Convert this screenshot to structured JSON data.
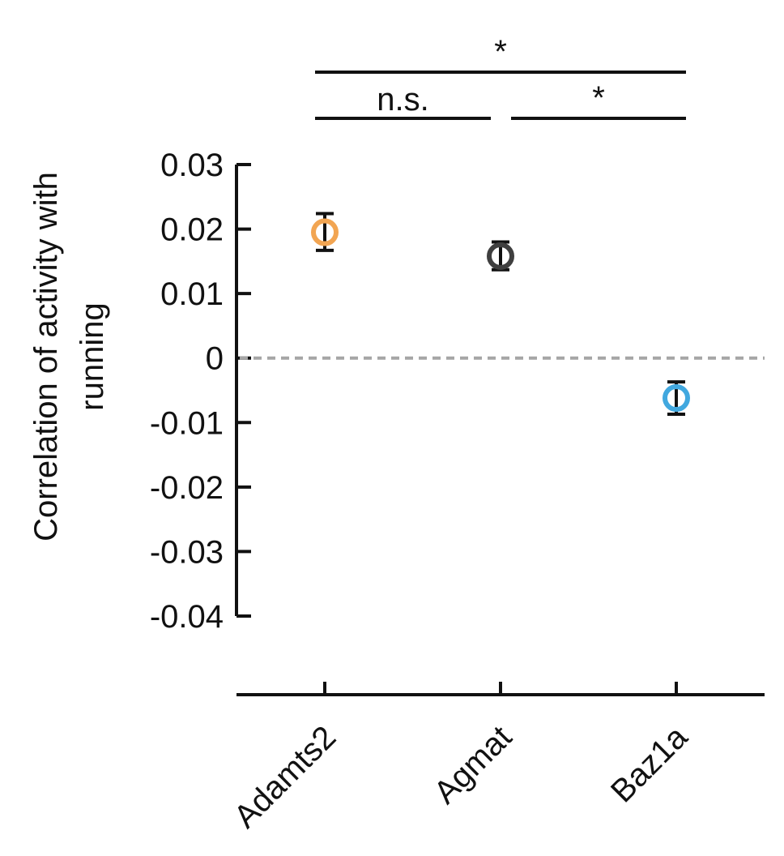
{
  "chart_data": {
    "type": "scatter",
    "ylabel_lines": [
      "Correlation of activity with",
      "running"
    ],
    "categories": [
      "Adamts2",
      "Agmat",
      "Baz1a"
    ],
    "points": [
      {
        "category": "Adamts2",
        "mean": 0.0195,
        "err_low": 0.0167,
        "err_high": 0.0224,
        "color": "#F2A552"
      },
      {
        "category": "Agmat",
        "mean": 0.0158,
        "err_low": 0.0137,
        "err_high": 0.018,
        "color": "#3F3F3F"
      },
      {
        "category": "Baz1a",
        "mean": -0.0062,
        "err_low": -0.0087,
        "err_high": -0.0037,
        "color": "#41A8DF"
      }
    ],
    "ylim": [
      -0.04,
      0.03
    ],
    "yticks": [
      0.03,
      0.02,
      0.01,
      0,
      -0.01,
      -0.02,
      -0.03,
      -0.04
    ],
    "ytick_labels": [
      "0.03",
      "0.02",
      "0.01",
      "0",
      "-0.01",
      "-0.02",
      "-0.03",
      "-0.04"
    ],
    "reference_line": {
      "y": 0,
      "style": "dashed",
      "color": "#A6A6A6"
    },
    "significance": [
      {
        "from": "Adamts2",
        "to": "Baz1a",
        "label": "*"
      },
      {
        "from": "Adamts2",
        "to": "Agmat",
        "label": "n.s."
      },
      {
        "from": "Agmat",
        "to": "Baz1a",
        "label": "*"
      }
    ],
    "grid": false,
    "legend": "none"
  }
}
